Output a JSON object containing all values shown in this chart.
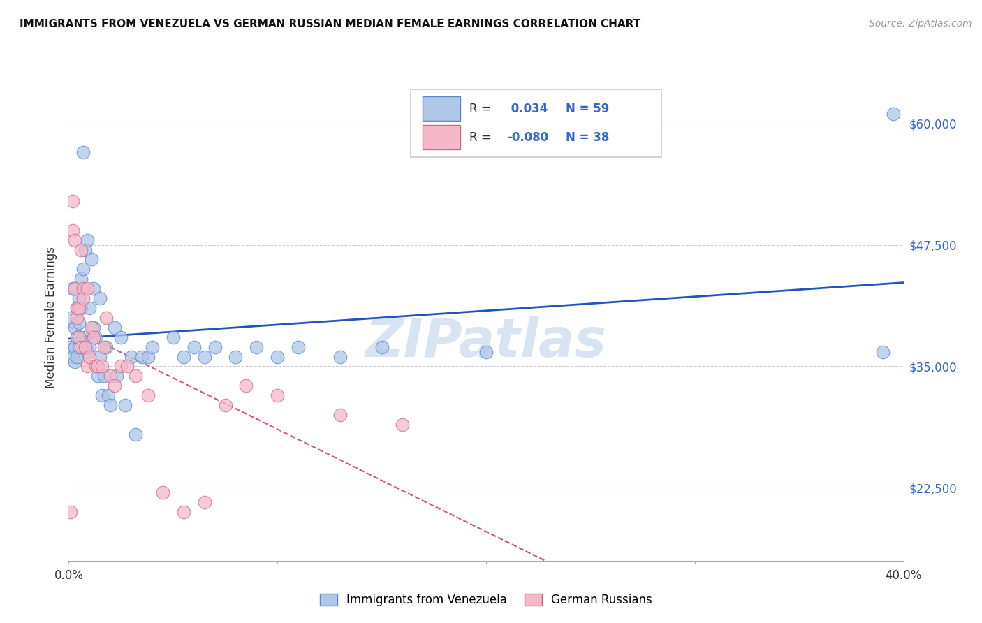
{
  "title": "IMMIGRANTS FROM VENEZUELA VS GERMAN RUSSIAN MEDIAN FEMALE EARNINGS CORRELATION CHART",
  "source": "Source: ZipAtlas.com",
  "ylabel": "Median Female Earnings",
  "y_ticks": [
    22500,
    35000,
    47500,
    60000
  ],
  "y_tick_labels": [
    "$22,500",
    "$35,000",
    "$47,500",
    "$60,000"
  ],
  "x_min": 0.0,
  "x_max": 0.4,
  "y_min": 15000,
  "y_max": 65000,
  "legend_blue_r": "0.034",
  "legend_blue_n": "59",
  "legend_pink_r": "-0.080",
  "legend_pink_n": "38",
  "legend_label_blue": "Immigrants from Venezuela",
  "legend_label_pink": "German Russians",
  "watermark": "ZIPatlas",
  "blue_color": "#AEC6E8",
  "blue_edge_color": "#5588CC",
  "pink_color": "#F4B8C8",
  "pink_edge_color": "#CC6688",
  "blue_line_color": "#2255BB",
  "pink_line_color": "#CC3366",
  "blue_scatter_x": [
    0.001,
    0.001,
    0.002,
    0.002,
    0.003,
    0.003,
    0.003,
    0.004,
    0.004,
    0.004,
    0.005,
    0.005,
    0.005,
    0.006,
    0.006,
    0.007,
    0.007,
    0.007,
    0.008,
    0.008,
    0.009,
    0.009,
    0.01,
    0.01,
    0.011,
    0.012,
    0.012,
    0.013,
    0.014,
    0.015,
    0.015,
    0.016,
    0.017,
    0.018,
    0.019,
    0.02,
    0.022,
    0.023,
    0.025,
    0.027,
    0.03,
    0.032,
    0.035,
    0.038,
    0.04,
    0.05,
    0.055,
    0.06,
    0.065,
    0.07,
    0.08,
    0.09,
    0.1,
    0.11,
    0.13,
    0.15,
    0.2,
    0.39,
    0.395
  ],
  "blue_scatter_y": [
    40000,
    37000,
    43000,
    36000,
    39000,
    37000,
    35500,
    41000,
    38000,
    36000,
    42000,
    39500,
    37000,
    44000,
    41000,
    57000,
    45000,
    38000,
    47000,
    37500,
    48000,
    36500,
    41000,
    37000,
    46000,
    43000,
    39000,
    38000,
    34000,
    36000,
    42000,
    32000,
    34000,
    37000,
    32000,
    31000,
    39000,
    34000,
    38000,
    31000,
    36000,
    28000,
    36000,
    36000,
    37000,
    38000,
    36000,
    37000,
    36000,
    37000,
    36000,
    37000,
    36000,
    37000,
    36000,
    37000,
    36500,
    36500,
    61000
  ],
  "pink_scatter_x": [
    0.001,
    0.002,
    0.002,
    0.003,
    0.003,
    0.004,
    0.004,
    0.005,
    0.005,
    0.006,
    0.006,
    0.007,
    0.007,
    0.008,
    0.009,
    0.009,
    0.01,
    0.011,
    0.012,
    0.013,
    0.014,
    0.016,
    0.017,
    0.018,
    0.02,
    0.022,
    0.025,
    0.028,
    0.032,
    0.038,
    0.045,
    0.055,
    0.065,
    0.075,
    0.085,
    0.1,
    0.13,
    0.16
  ],
  "pink_scatter_y": [
    20000,
    52000,
    49000,
    43000,
    48000,
    40000,
    41000,
    38000,
    41000,
    47000,
    37000,
    43000,
    42000,
    37000,
    35000,
    43000,
    36000,
    39000,
    38000,
    35000,
    35000,
    35000,
    37000,
    40000,
    34000,
    33000,
    35000,
    35000,
    34000,
    32000,
    22000,
    20000,
    21000,
    31000,
    33000,
    32000,
    30000,
    29000
  ]
}
